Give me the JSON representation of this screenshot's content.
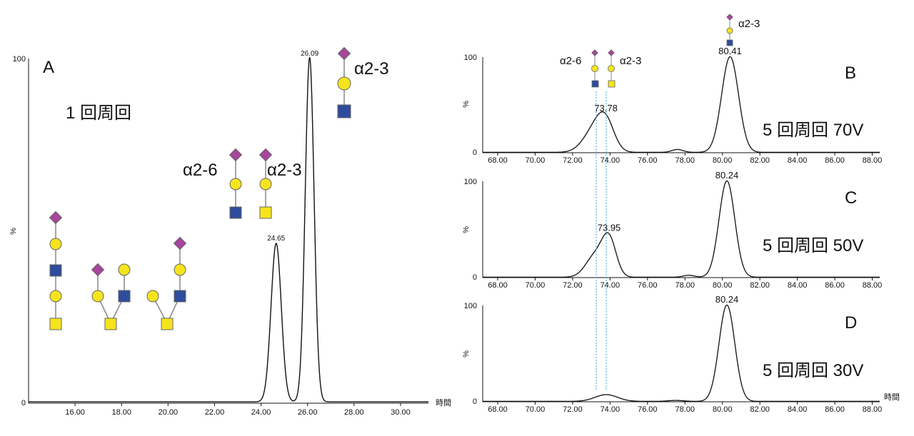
{
  "colors": {
    "trace": "#111111",
    "neuac": "#a8459c",
    "gal": "#f5e41c",
    "glcnac": "#2e4c9d",
    "galnac": "#f5e41c",
    "guide": "#3aa6d6"
  },
  "chart_data": [
    {
      "id": "A",
      "type": "line",
      "panel_label": "A",
      "condition": "1 回周回",
      "xlabel": "時間",
      "ylabel": "%",
      "xlim": [
        14.0,
        31.2
      ],
      "ylim": [
        0,
        100
      ],
      "x_ticks": [
        "16.00",
        "18.00",
        "20.00",
        "22.00",
        "24.00",
        "26.00",
        "28.00",
        "30.00"
      ],
      "y_ticks": [
        "0",
        "100"
      ],
      "peaks": [
        {
          "rt": 24.65,
          "label": "24.65",
          "height": 46,
          "width": 0.22
        },
        {
          "rt": 26.09,
          "label": "26.09",
          "height": 100,
          "width": 0.19
        }
      ],
      "isomer_labels": [
        {
          "text": "α2-6"
        },
        {
          "text": "α2-3"
        },
        {
          "text": "α2-3"
        }
      ]
    },
    {
      "id": "B",
      "type": "line",
      "panel_label": "B",
      "condition": "5 回周回 70V",
      "ylabel": "%",
      "xlim": [
        67.2,
        88.4
      ],
      "ylim": [
        0,
        100
      ],
      "x_ticks": [
        "68.00",
        "70.00",
        "72.00",
        "74.00",
        "76.00",
        "78.00",
        "80.00",
        "82.00",
        "84.00",
        "86.00",
        "88.00"
      ],
      "y_ticks": [
        "0",
        "100"
      ],
      "peaks": [
        {
          "rt": 73.2,
          "label": "",
          "height": 24,
          "width": 0.6
        },
        {
          "rt": 73.78,
          "label": "73.78",
          "height": 25,
          "width": 0.45
        },
        {
          "rt": 77.6,
          "label": "",
          "height": 3,
          "width": 0.3
        },
        {
          "rt": 80.41,
          "label": "80.41",
          "height": 100,
          "width": 0.45
        }
      ],
      "isomer_labels": [
        {
          "text": "α2-6"
        },
        {
          "text": "α2-3"
        },
        {
          "text": "α2-3"
        }
      ]
    },
    {
      "id": "C",
      "type": "line",
      "panel_label": "C",
      "condition": "5 回周回 50V",
      "ylabel": "%",
      "xlim": [
        67.2,
        88.4
      ],
      "ylim": [
        0,
        100
      ],
      "x_ticks": [
        "68.00",
        "70.00",
        "72.00",
        "74.00",
        "76.00",
        "78.00",
        "80.00",
        "82.00",
        "84.00",
        "86.00",
        "88.00"
      ],
      "y_ticks": [
        "0",
        "100"
      ],
      "peaks": [
        {
          "rt": 73.2,
          "label": "",
          "height": 22,
          "width": 0.5
        },
        {
          "rt": 73.95,
          "label": "73.95",
          "height": 38,
          "width": 0.38
        },
        {
          "rt": 78.2,
          "label": "",
          "height": 2,
          "width": 0.3
        },
        {
          "rt": 80.24,
          "label": "80.24",
          "height": 100,
          "width": 0.42
        }
      ]
    },
    {
      "id": "D",
      "type": "line",
      "panel_label": "D",
      "condition": "5 回周回 30V",
      "xlabel": "時間",
      "ylabel": "%",
      "xlim": [
        67.2,
        88.4
      ],
      "ylim": [
        0,
        100
      ],
      "x_ticks": [
        "68.00",
        "70.00",
        "72.00",
        "74.00",
        "76.00",
        "78.00",
        "80.00",
        "82.00",
        "84.00",
        "86.00",
        "88.00"
      ],
      "y_ticks": [
        "0",
        "100"
      ],
      "peaks": [
        {
          "rt": 73.8,
          "label": "",
          "height": 7,
          "width": 0.6
        },
        {
          "rt": 77.5,
          "label": "",
          "height": 1,
          "width": 0.4
        },
        {
          "rt": 80.24,
          "label": "80.24",
          "height": 100,
          "width": 0.42
        }
      ]
    }
  ]
}
